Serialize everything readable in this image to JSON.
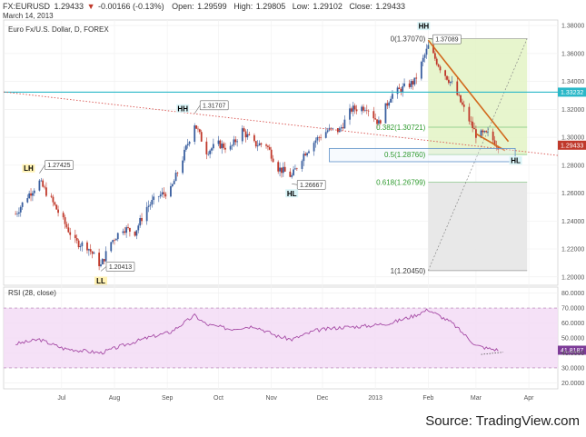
{
  "header": {
    "symbol": "FX:EURUSD",
    "last": "1.29433",
    "arrow": "▼",
    "change": "-0.00166 (-0.13%)",
    "open_label": "Open:",
    "open": "1.29599",
    "high_label": "High:",
    "high": "1.29805",
    "low_label": "Low:",
    "low": "1.29102",
    "close_label": "Close:",
    "close": "1.29433",
    "date": "March 14, 2013",
    "chart_title": "Euro Fx/U.S. Dollar, D, FOREX"
  },
  "rsi_label": "RSI (28, close)",
  "source": "Source: TradingView.com",
  "colors": {
    "up": "#3a5f9f",
    "down": "#c0392b",
    "trendline": "#d2691e",
    "cyan_line": "#2ab8c8",
    "dotted_red": "#d9534f",
    "fib_zone": "#e4f4c8",
    "grey_zone": "#e6e6e6",
    "rsi_band": "#f2d9f5",
    "rsi_line": "#a64ca6"
  },
  "chart_data": [
    {
      "type": "candlestick",
      "title": "Euro Fx/U.S. Dollar, D, FOREX",
      "y_ticks": [
        "1.38000",
        "1.36000",
        "1.34000",
        "1.32000",
        "1.30000",
        "1.28000",
        "1.26000",
        "1.24000",
        "1.22000",
        "1.20000"
      ],
      "ylim": [
        1.194,
        1.384
      ],
      "x_ticks": [
        "Jul",
        "Aug",
        "Sep",
        "Oct",
        "Nov",
        "Dec",
        "2013",
        "Feb",
        "Mar",
        "Apr"
      ],
      "price_labels": {
        "level_1": "1.33232",
        "last": "1.29433"
      },
      "annotations": [
        {
          "text": "1.27425",
          "date": "2012-06-18",
          "price": 1.27425
        },
        {
          "text": "1.20413",
          "date": "2012-07-24",
          "price": 1.20413
        },
        {
          "text": "1.31707",
          "date": "2012-09-17",
          "price": 1.31707
        },
        {
          "text": "1.26667",
          "date": "2012-11-13",
          "price": 1.26667
        },
        {
          "text": "1.37089",
          "date": "2013-02-01",
          "price": 1.37089
        }
      ],
      "swing_labels": [
        {
          "text": "LH",
          "date": "2012-06-18",
          "price": 1.2742
        },
        {
          "text": "LL",
          "date": "2012-07-24",
          "price": 1.2041
        },
        {
          "text": "HH",
          "date": "2012-09-17",
          "price": 1.3171
        },
        {
          "text": "HL",
          "date": "2012-11-13",
          "price": 1.2667
        },
        {
          "text": "HH",
          "date": "2013-02-01",
          "price": 1.3709
        },
        {
          "text": "HL",
          "date": "2013-03-20",
          "price": 1.285
        }
      ],
      "fib_levels": [
        {
          "text": "0(1.37070)",
          "level": 0,
          "price": 1.3707
        },
        {
          "text": "0.382(1.30721)",
          "level": 0.382,
          "price": 1.30721
        },
        {
          "text": "0.5(1.28760)",
          "level": 0.5,
          "price": 1.2876
        },
        {
          "text": "0.618(1.26799)",
          "level": 0.618,
          "price": 1.26799
        },
        {
          "text": "1(1.20450)",
          "level": 1,
          "price": 1.2045
        }
      ],
      "price_path": [
        [
          "2012-06-04",
          1.245
        ],
        [
          "2012-06-11",
          1.258
        ],
        [
          "2012-06-18",
          1.268
        ],
        [
          "2012-06-25",
          1.255
        ],
        [
          "2012-07-02",
          1.24
        ],
        [
          "2012-07-09",
          1.225
        ],
        [
          "2012-07-16",
          1.222
        ],
        [
          "2012-07-24",
          1.208
        ],
        [
          "2012-07-30",
          1.225
        ],
        [
          "2012-08-06",
          1.235
        ],
        [
          "2012-08-13",
          1.232
        ],
        [
          "2012-08-20",
          1.25
        ],
        [
          "2012-08-27",
          1.258
        ],
        [
          "2012-09-03",
          1.262
        ],
        [
          "2012-09-10",
          1.285
        ],
        [
          "2012-09-17",
          1.31
        ],
        [
          "2012-09-24",
          1.29
        ],
        [
          "2012-10-01",
          1.295
        ],
        [
          "2012-10-08",
          1.292
        ],
        [
          "2012-10-15",
          1.305
        ],
        [
          "2012-10-22",
          1.295
        ],
        [
          "2012-10-29",
          1.295
        ],
        [
          "2012-11-05",
          1.278
        ],
        [
          "2012-11-13",
          1.272
        ],
        [
          "2012-11-20",
          1.288
        ],
        [
          "2012-11-27",
          1.298
        ],
        [
          "2012-12-04",
          1.305
        ],
        [
          "2012-12-11",
          1.305
        ],
        [
          "2012-12-18",
          1.32
        ],
        [
          "2012-12-27",
          1.322
        ],
        [
          "2013-01-03",
          1.31
        ],
        [
          "2013-01-10",
          1.33
        ],
        [
          "2013-01-17",
          1.335
        ],
        [
          "2013-01-24",
          1.34
        ],
        [
          "2013-02-01",
          1.365
        ],
        [
          "2013-02-08",
          1.35
        ],
        [
          "2013-02-15",
          1.338
        ],
        [
          "2013-02-22",
          1.32
        ],
        [
          "2013-03-01",
          1.302
        ],
        [
          "2013-03-08",
          1.302
        ],
        [
          "2013-03-14",
          1.294
        ]
      ],
      "rsi": {
        "y_ticks": [
          "80.0000",
          "70.0000",
          "60.0000",
          "50.0000",
          "40.0000",
          "30.0000",
          "20.0000"
        ],
        "ylim": [
          16,
          84
        ],
        "band": [
          30,
          70
        ],
        "last_label": "41.8187",
        "path": [
          [
            "2012-06-04",
            46
          ],
          [
            "2012-06-18",
            49
          ],
          [
            "2012-07-02",
            43
          ],
          [
            "2012-07-24",
            40
          ],
          [
            "2012-08-06",
            45
          ],
          [
            "2012-08-20",
            50
          ],
          [
            "2012-09-03",
            54
          ],
          [
            "2012-09-17",
            65
          ],
          [
            "2012-09-24",
            59
          ],
          [
            "2012-10-08",
            56
          ],
          [
            "2012-10-22",
            58
          ],
          [
            "2012-11-05",
            51
          ],
          [
            "2012-11-13",
            49
          ],
          [
            "2012-11-27",
            55
          ],
          [
            "2012-12-11",
            57
          ],
          [
            "2012-12-27",
            58
          ],
          [
            "2013-01-10",
            60
          ],
          [
            "2013-01-24",
            65
          ],
          [
            "2013-02-01",
            69
          ],
          [
            "2013-02-15",
            60
          ],
          [
            "2013-03-01",
            45
          ],
          [
            "2013-03-08",
            43
          ],
          [
            "2013-03-14",
            42
          ]
        ]
      }
    }
  ]
}
